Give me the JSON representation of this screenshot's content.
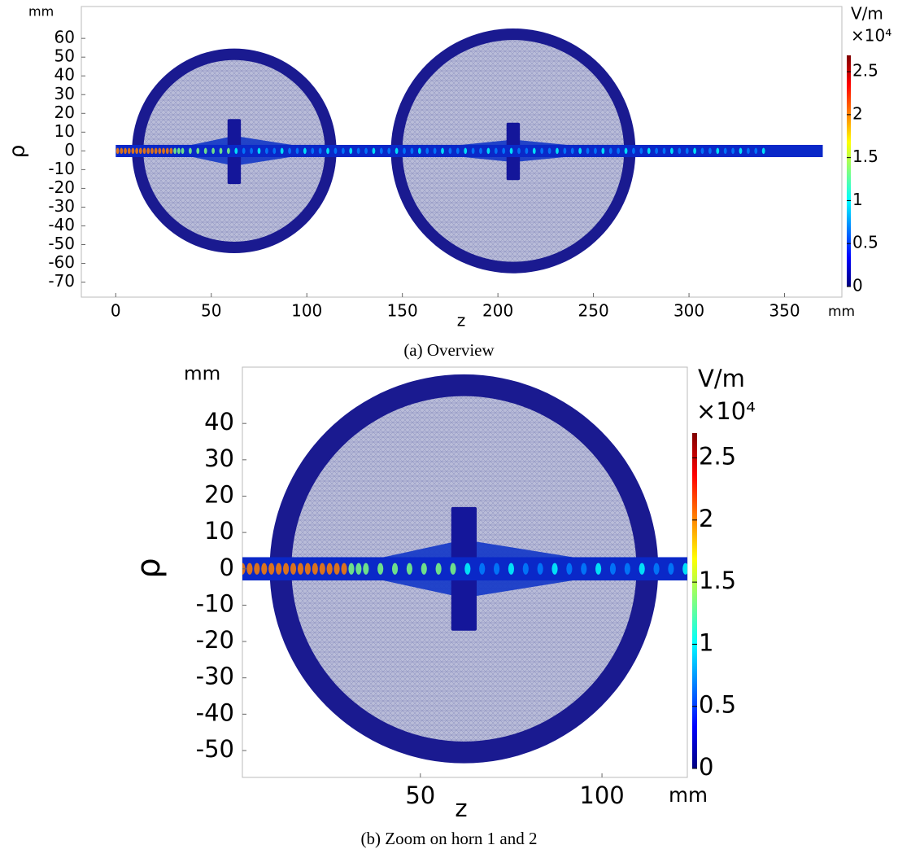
{
  "chart_data": [
    {
      "type": "field",
      "caption": "(a) Overview",
      "x_label": "z",
      "x_unit": "mm",
      "y_label": "ρ",
      "y_unit": "mm",
      "colorbar_unit": "V/m",
      "colorbar_multiplier": "×10⁴",
      "colormap": "jet",
      "xlim": [
        -18,
        380
      ],
      "xticks": [
        0,
        50,
        100,
        150,
        200,
        250,
        300,
        350
      ],
      "ylim": [
        -78,
        77
      ],
      "yticks": [
        60,
        50,
        40,
        30,
        20,
        10,
        0,
        -10,
        -20,
        -30,
        -40,
        -50,
        -60,
        -70
      ],
      "clim": [
        0,
        2.69
      ],
      "cticks": [
        0,
        0.5,
        1,
        1.5,
        2,
        2.5
      ]
    },
    {
      "type": "field",
      "caption": "(b) Zoom on horn 1 and 2",
      "x_label": "z",
      "x_unit": "mm",
      "y_label": "ρ",
      "y_unit": "mm",
      "colorbar_unit": "V/m",
      "colorbar_multiplier": "×10⁴",
      "colormap": "jet",
      "xlim": [
        1,
        123.5
      ],
      "xticks": [
        50,
        100
      ],
      "ylim": [
        -57.4,
        55.5
      ],
      "yticks": [
        40,
        30,
        20,
        10,
        0,
        -10,
        -20,
        -30,
        -40,
        -50
      ],
      "clim": [
        0,
        2.7
      ],
      "cticks": [
        0,
        0.5,
        1,
        1.5,
        2,
        2.5
      ]
    }
  ]
}
